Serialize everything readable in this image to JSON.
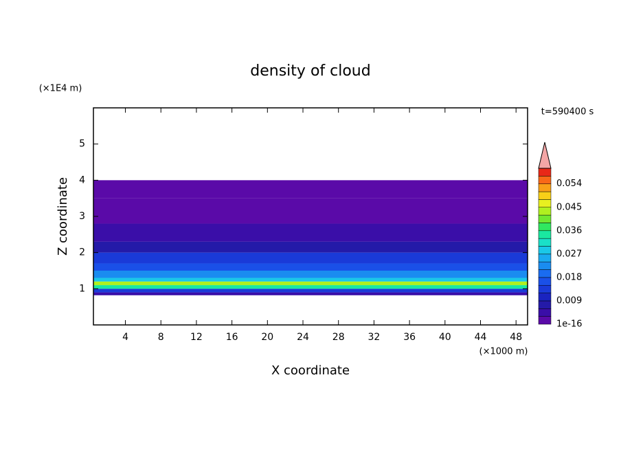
{
  "chart_data": {
    "type": "contour",
    "title": "density of cloud",
    "xlabel": "X coordinate",
    "ylabel": "Z coordinate",
    "xunit": "(×1000 m)",
    "yunit": "(×1E4 m)",
    "time_label": "t=590400 s",
    "xlim": [
      0.4,
      49.3
    ],
    "ylim": [
      0,
      6
    ],
    "xticks": [
      4,
      8,
      12,
      16,
      20,
      24,
      28,
      32,
      36,
      40,
      44,
      48
    ],
    "yticks": [
      1,
      2,
      3,
      4,
      5
    ],
    "field": {
      "z_edges": [
        0.82,
        0.9,
        1.0,
        1.1,
        1.2,
        1.3,
        1.5,
        1.7,
        2.0,
        2.3,
        2.8,
        3.5,
        4.0
      ],
      "values": [
        0.006,
        0.015,
        0.036,
        0.045,
        0.03,
        0.022,
        0.018,
        0.013,
        0.009,
        0.005,
        0.002,
        0.0005
      ]
    },
    "colorbar": {
      "clim": [
        1e-16,
        0.06
      ],
      "ticks": [
        {
          "value": 1e-16,
          "label": "1e-16"
        },
        0.009,
        0.018,
        0.027,
        0.036,
        0.045,
        0.054
      ],
      "colors": [
        "#5a0aa8",
        "#3a0ea8",
        "#241aa8",
        "#1a24c0",
        "#1a3ad8",
        "#1a50e8",
        "#1a6cf0",
        "#1a8cf0",
        "#1aaaf0",
        "#1ac8e8",
        "#1ae0c8",
        "#1ae8a0",
        "#30e860",
        "#70e830",
        "#b0f020",
        "#e8f020",
        "#f8d018",
        "#f8a018",
        "#f86818",
        "#e82818"
      ],
      "extend_color": "#f4a6a6"
    }
  }
}
